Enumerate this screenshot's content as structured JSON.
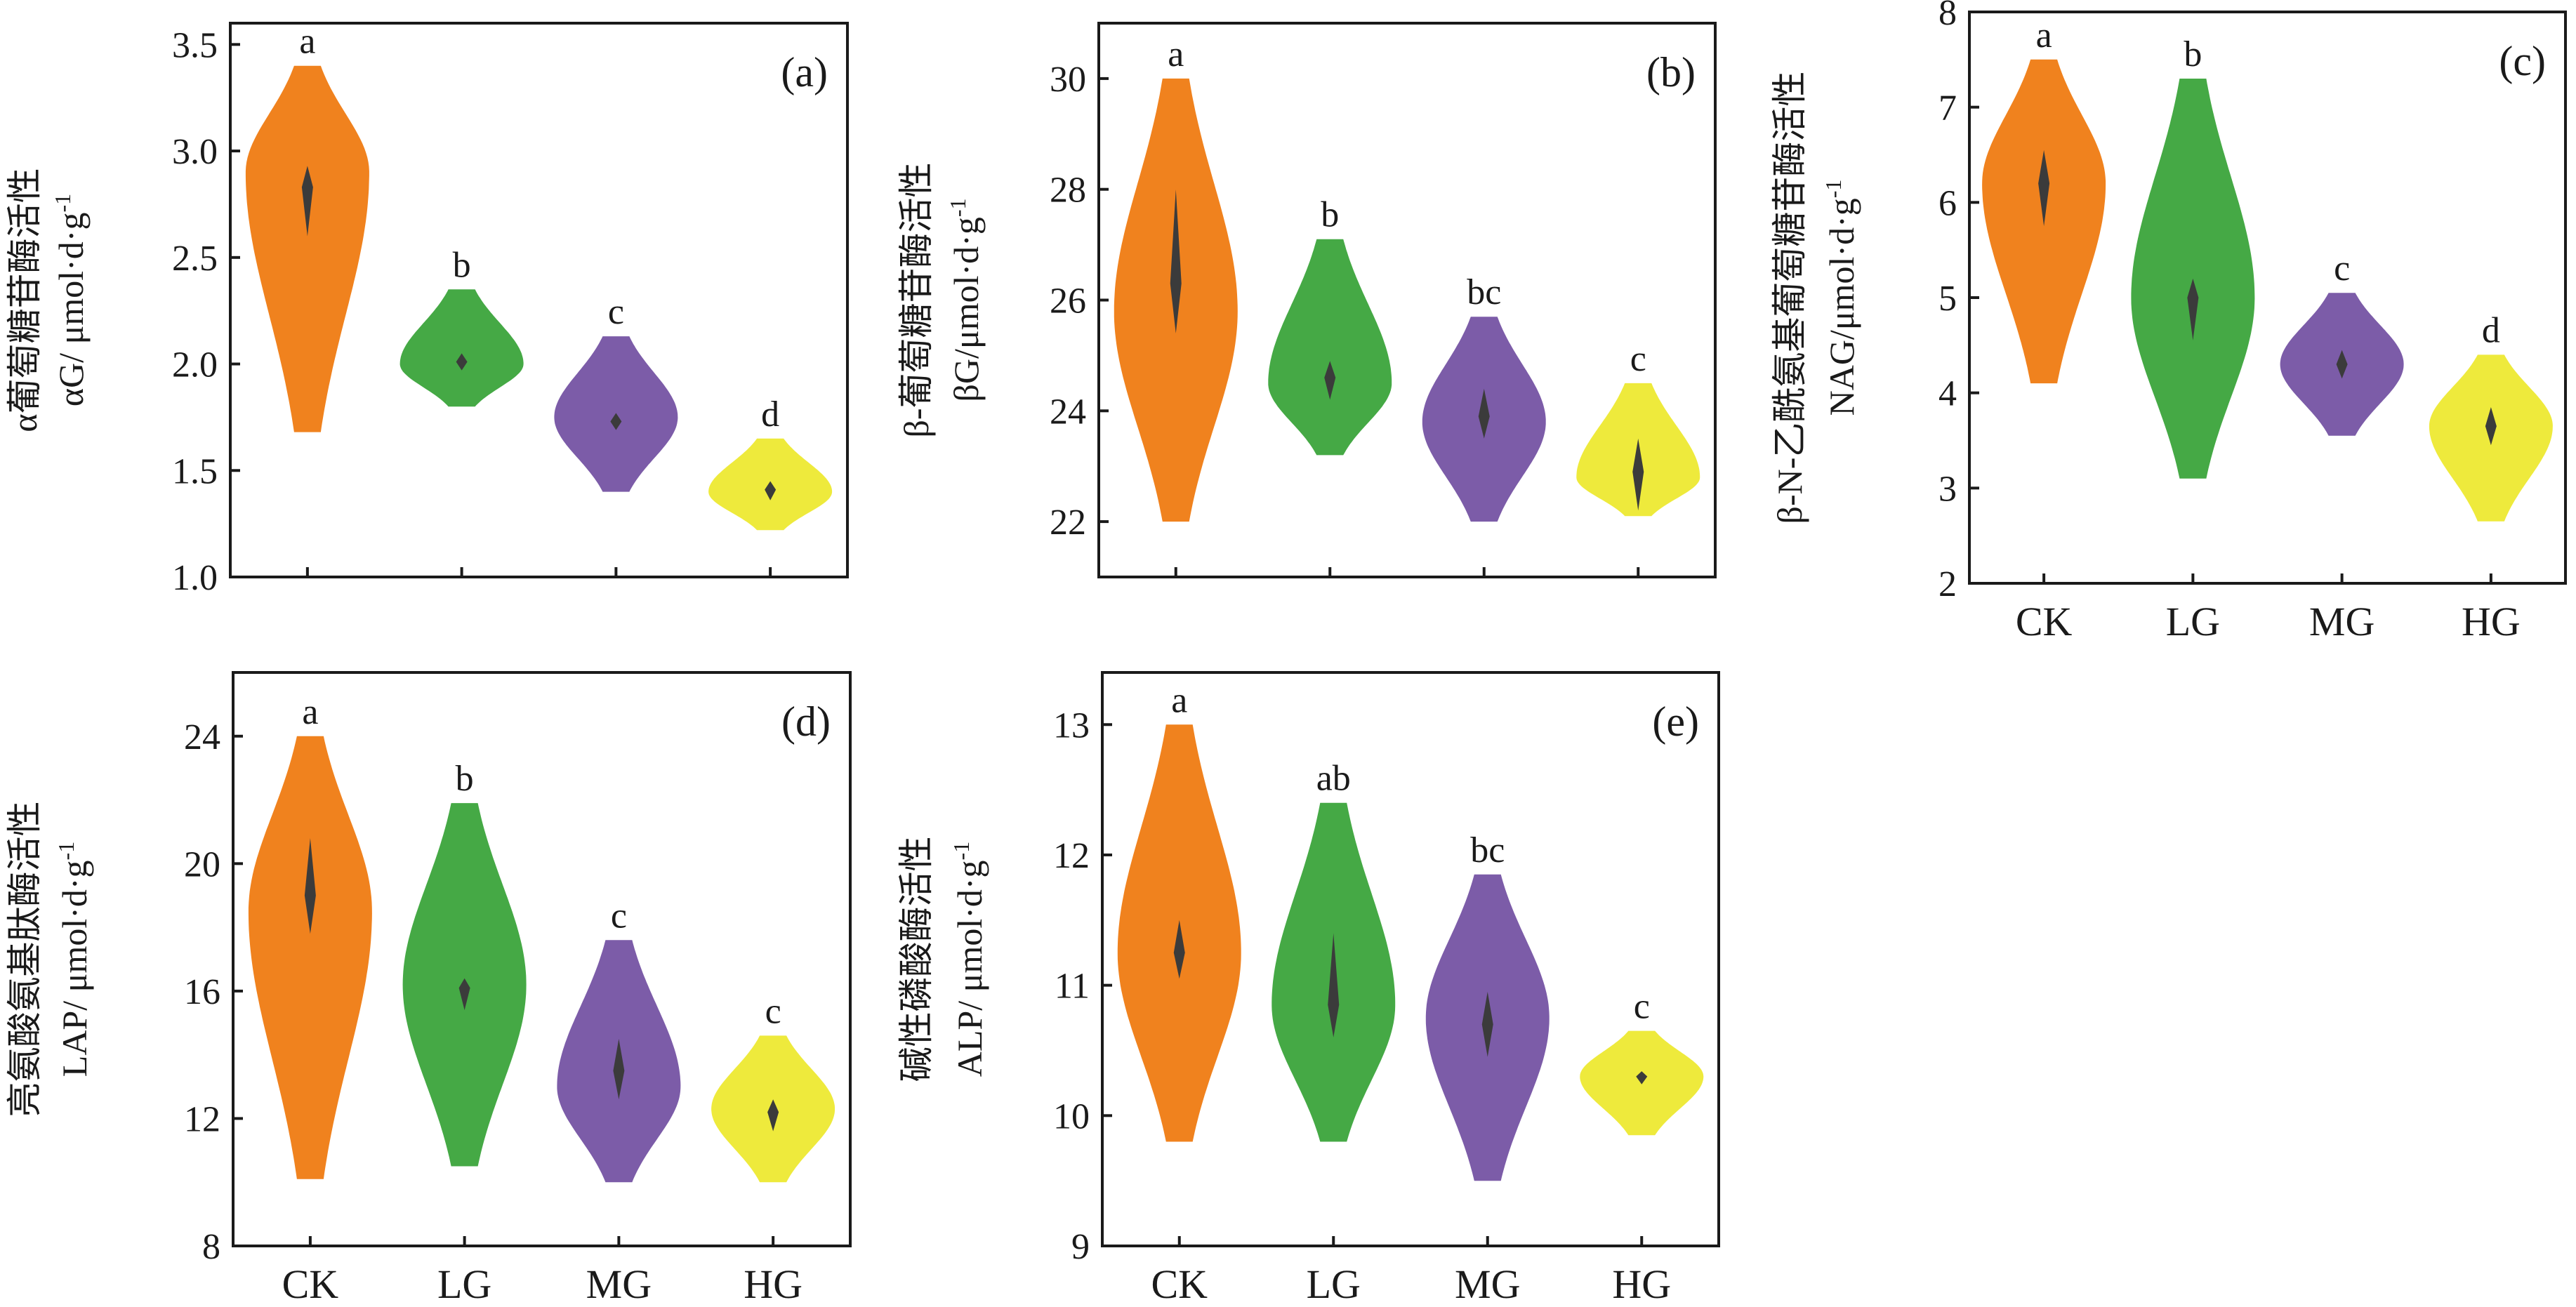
{
  "chart_data": [
    {
      "type": "violin",
      "panel": "(a)",
      "ylabel_line1": "α葡萄糖苷酶活性",
      "ylabel_line2": "αG/ μmol·d·g",
      "ylabel_sup": "-1",
      "ylim": [
        1.0,
        3.6
      ],
      "yticks": [
        1.0,
        1.5,
        2.0,
        2.5,
        3.0,
        3.5
      ],
      "yticklabels": [
        "1.0",
        "1.5",
        "2.0",
        "2.5",
        "3.0",
        "3.5"
      ],
      "categories": [
        "CK",
        "LG",
        "MG",
        "HG"
      ],
      "show_xticklabels": false,
      "groups": [
        {
          "name": "CK",
          "color": "#F0821E",
          "min": 1.68,
          "max": 3.4,
          "mode": 2.9,
          "median": 2.83,
          "q1": 2.6,
          "q3": 2.93,
          "sig": "a"
        },
        {
          "name": "LG",
          "color": "#45A945",
          "min": 1.8,
          "max": 2.35,
          "mode": 2.0,
          "median": 2.01,
          "q1": 1.97,
          "q3": 2.05,
          "sig": "b"
        },
        {
          "name": "MG",
          "color": "#7C5CA8",
          "min": 1.4,
          "max": 2.13,
          "mode": 1.75,
          "median": 1.73,
          "q1": 1.69,
          "q3": 1.77,
          "sig": "c"
        },
        {
          "name": "HG",
          "color": "#EEEA3C",
          "min": 1.22,
          "max": 1.65,
          "mode": 1.4,
          "median": 1.41,
          "q1": 1.36,
          "q3": 1.45,
          "sig": "d"
        }
      ]
    },
    {
      "type": "violin",
      "panel": "(b)",
      "ylabel_line1": "β-葡萄糖苷酶活性",
      "ylabel_line2": "βG/μmol·d·g",
      "ylabel_sup": "-1",
      "ylim": [
        21.0,
        31.0
      ],
      "yticks": [
        22,
        24,
        26,
        28,
        30
      ],
      "yticklabels": [
        "22",
        "24",
        "26",
        "28",
        "30"
      ],
      "categories": [
        "CK",
        "LG",
        "MG",
        "HG"
      ],
      "show_xticklabels": false,
      "groups": [
        {
          "name": "CK",
          "color": "#F0821E",
          "min": 22.0,
          "max": 30.0,
          "mode": 25.8,
          "median": 26.3,
          "q1": 25.4,
          "q3": 28.0,
          "sig": "a"
        },
        {
          "name": "LG",
          "color": "#45A945",
          "min": 23.2,
          "max": 27.1,
          "mode": 24.5,
          "median": 24.6,
          "q1": 24.2,
          "q3": 24.9,
          "sig": "b"
        },
        {
          "name": "MG",
          "color": "#7C5CA8",
          "min": 22.0,
          "max": 25.7,
          "mode": 23.8,
          "median": 23.9,
          "q1": 23.5,
          "q3": 24.4,
          "sig": "bc"
        },
        {
          "name": "HG",
          "color": "#EEEA3C",
          "min": 22.1,
          "max": 24.5,
          "mode": 22.8,
          "median": 22.9,
          "q1": 22.2,
          "q3": 23.5,
          "sig": "c"
        }
      ]
    },
    {
      "type": "violin",
      "panel": "(c)",
      "ylabel_line1": "β-N-乙酰氨基葡萄糖苷酶活性",
      "ylabel_line2": "NAG/μmol·d·g",
      "ylabel_sup": "-1",
      "ylim": [
        2.0,
        8.0
      ],
      "yticks": [
        2,
        3,
        4,
        5,
        6,
        7,
        8
      ],
      "yticklabels": [
        "2",
        "3",
        "4",
        "5",
        "6",
        "7",
        "8"
      ],
      "categories": [
        "CK",
        "LG",
        "MG",
        "HG"
      ],
      "show_xticklabels": true,
      "groups": [
        {
          "name": "CK",
          "color": "#F0821E",
          "min": 4.1,
          "max": 7.5,
          "mode": 6.2,
          "median": 6.2,
          "q1": 5.75,
          "q3": 6.55,
          "sig": "a"
        },
        {
          "name": "LG",
          "color": "#45A945",
          "min": 3.1,
          "max": 7.3,
          "mode": 5.0,
          "median": 5.0,
          "q1": 4.55,
          "q3": 5.2,
          "sig": "b"
        },
        {
          "name": "MG",
          "color": "#7C5CA8",
          "min": 3.55,
          "max": 5.05,
          "mode": 4.3,
          "median": 4.3,
          "q1": 4.15,
          "q3": 4.45,
          "sig": "c"
        },
        {
          "name": "HG",
          "color": "#EEEA3C",
          "min": 2.65,
          "max": 4.4,
          "mode": 3.65,
          "median": 3.65,
          "q1": 3.45,
          "q3": 3.85,
          "sig": "d"
        }
      ]
    },
    {
      "type": "violin",
      "panel": "(d)",
      "ylabel_line1": "亮氨酸氨基肽酶活性",
      "ylabel_line2": "LAP/ μmol·d·g",
      "ylabel_sup": "-1",
      "ylim": [
        8.0,
        26.0
      ],
      "yticks": [
        8,
        12,
        16,
        20,
        24
      ],
      "yticklabels": [
        "8",
        "12",
        "16",
        "20",
        "24"
      ],
      "categories": [
        "CK",
        "LG",
        "MG",
        "HG"
      ],
      "show_xticklabels": true,
      "groups": [
        {
          "name": "CK",
          "color": "#F0821E",
          "min": 10.1,
          "max": 24.0,
          "mode": 18.5,
          "median": 19.0,
          "q1": 17.8,
          "q3": 20.8,
          "sig": "a"
        },
        {
          "name": "LG",
          "color": "#45A945",
          "min": 10.5,
          "max": 21.9,
          "mode": 16.2,
          "median": 16.1,
          "q1": 15.4,
          "q3": 16.4,
          "sig": "b"
        },
        {
          "name": "MG",
          "color": "#7C5CA8",
          "min": 10.0,
          "max": 17.6,
          "mode": 13.0,
          "median": 13.5,
          "q1": 12.6,
          "q3": 14.5,
          "sig": "c"
        },
        {
          "name": "HG",
          "color": "#EEEA3C",
          "min": 10.0,
          "max": 14.6,
          "mode": 12.3,
          "median": 12.2,
          "q1": 11.6,
          "q3": 12.6,
          "sig": "c"
        }
      ]
    },
    {
      "type": "violin",
      "panel": "(e)",
      "ylabel_line1": "碱性磷酸酶活性",
      "ylabel_line2": "ALP/ μmol·d·g",
      "ylabel_sup": "-1",
      "ylim": [
        9.0,
        13.4
      ],
      "yticks": [
        9,
        10,
        11,
        12,
        13
      ],
      "yticklabels": [
        "9",
        "10",
        "11",
        "12",
        "13"
      ],
      "categories": [
        "CK",
        "LG",
        "MG",
        "HG"
      ],
      "show_xticklabels": true,
      "groups": [
        {
          "name": "CK",
          "color": "#F0821E",
          "min": 9.8,
          "max": 13.0,
          "mode": 11.25,
          "median": 11.25,
          "q1": 11.05,
          "q3": 11.5,
          "sig": "a"
        },
        {
          "name": "LG",
          "color": "#45A945",
          "min": 9.8,
          "max": 12.4,
          "mode": 10.85,
          "median": 10.85,
          "q1": 10.6,
          "q3": 11.4,
          "sig": "ab"
        },
        {
          "name": "MG",
          "color": "#7C5CA8",
          "min": 9.5,
          "max": 11.85,
          "mode": 10.75,
          "median": 10.7,
          "q1": 10.45,
          "q3": 10.95,
          "sig": "bc"
        },
        {
          "name": "HG",
          "color": "#EEEA3C",
          "min": 9.85,
          "max": 10.65,
          "mode": 10.3,
          "median": 10.3,
          "q1": 10.24,
          "q3": 10.34,
          "sig": "c"
        }
      ]
    }
  ]
}
